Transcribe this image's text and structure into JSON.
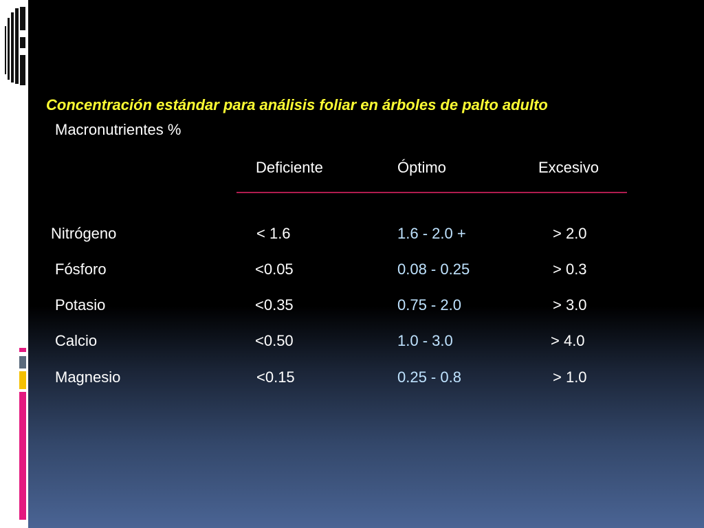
{
  "slide": {
    "title": "Concentración estándar para análisis foliar en árboles de palto adulto",
    "subtitle": "Macronutrientes %",
    "columns": [
      "Deficiente",
      "Óptimo",
      "Excesivo"
    ],
    "rows": [
      {
        "nutrient": "Nitrógeno",
        "deficiente": "< 1.6",
        "optimo": "1.6 - 2.0 +",
        "excesivo": "> 2.0"
      },
      {
        "nutrient": "Fósforo",
        "deficiente": "<0.05",
        "optimo": "0.08 - 0.25",
        "excesivo": "> 0.3"
      },
      {
        "nutrient": "Potasio",
        "deficiente": "<0.35",
        "optimo": "0.75 - 2.0",
        "excesivo": "> 3.0"
      },
      {
        "nutrient": "Calcio",
        "deficiente": "<0.50",
        "optimo": "1.0 - 3.0",
        "excesivo": "> 4.0"
      },
      {
        "nutrient": "Magnesio",
        "deficiente": "<0.15",
        "optimo": "0.25 - 0.8",
        "excesivo": "> 1.0"
      }
    ]
  },
  "colors": {
    "title": "#ffff33",
    "text": "#ffffff",
    "optimo_text": "#bfe3ff",
    "header_rule": "#b01c4e",
    "accent_pink": "#e3197f",
    "accent_yellow": "#f5c000",
    "accent_gray": "#5a6a7c"
  },
  "icons": {
    "logo": "slide-logo-icon"
  }
}
